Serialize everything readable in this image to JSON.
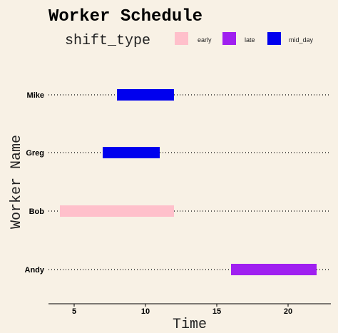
{
  "chart_data": {
    "type": "bar",
    "orientation": "horizontal-range",
    "title": "Worker Schedule",
    "xlabel": "Time",
    "ylabel": "Worker Name",
    "legend": {
      "title": "shift_type",
      "placement": "top",
      "items": [
        {
          "label": "early",
          "color": "#ffc0cb"
        },
        {
          "label": "late",
          "color": "#a020f0"
        },
        {
          "label": "mid_day",
          "color": "#0000ee"
        }
      ]
    },
    "workers": [
      "Andy",
      "Bob",
      "Greg",
      "Mike"
    ],
    "shifts": [
      {
        "worker": "Mike",
        "shift_type": "mid_day",
        "start": 8,
        "end": 12
      },
      {
        "worker": "Greg",
        "shift_type": "mid_day",
        "start": 7,
        "end": 11
      },
      {
        "worker": "Bob",
        "shift_type": "early",
        "start": 4,
        "end": 12
      },
      {
        "worker": "Andy",
        "shift_type": "late",
        "start": 16,
        "end": 22
      }
    ],
    "x_ticks": [
      5,
      10,
      15,
      20
    ],
    "xlim": [
      3.2,
      23
    ],
    "grid": "dotted horizontal lines at each worker",
    "background": "#f8f1e5",
    "axis_color": "#000000"
  }
}
